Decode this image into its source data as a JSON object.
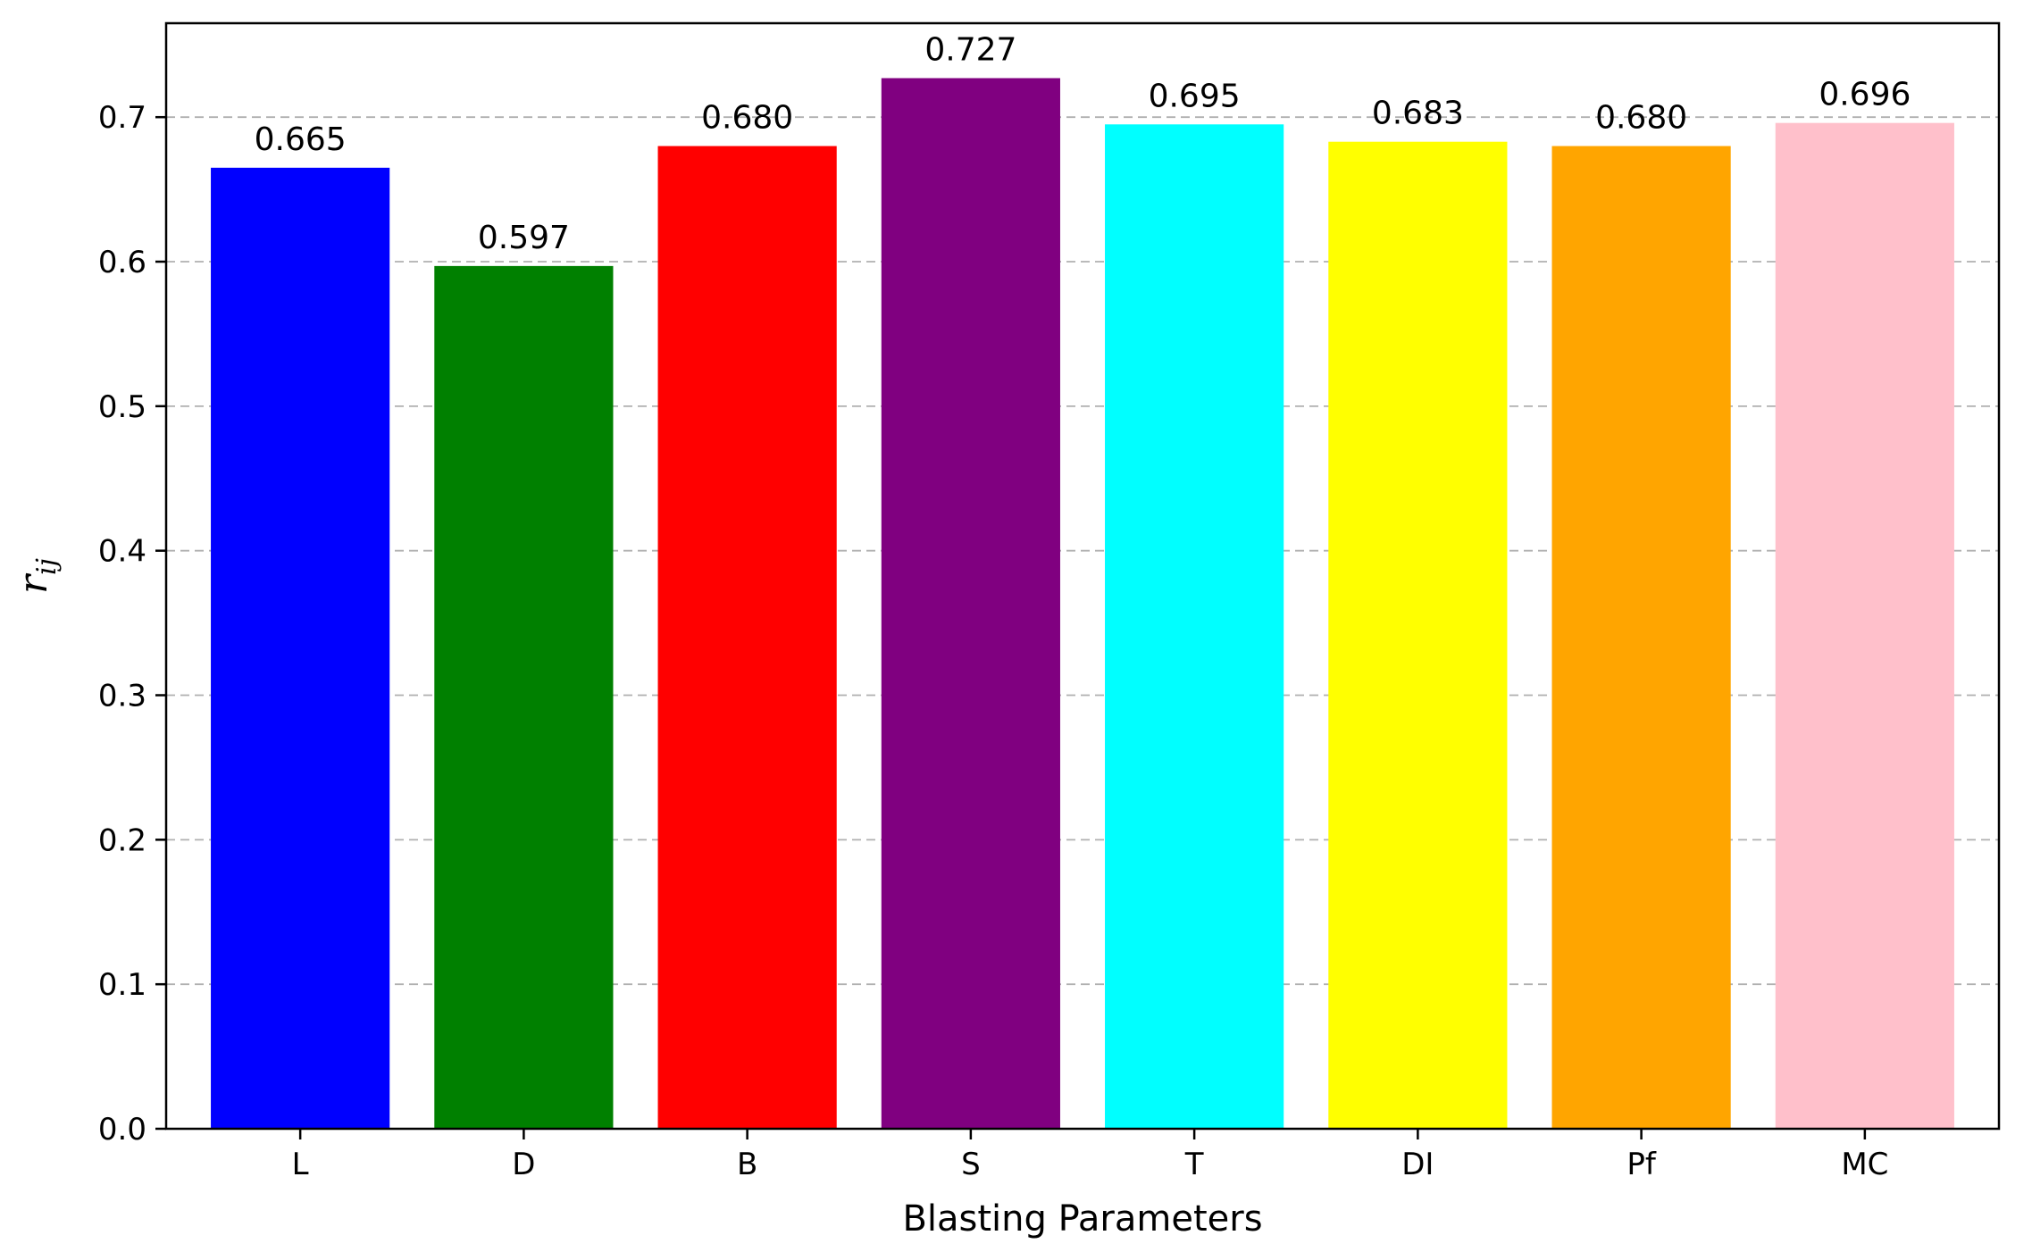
{
  "chart_data": {
    "type": "bar",
    "title": "",
    "xlabel": "Blasting Parameters",
    "ylabel": {
      "base": "r",
      "subscript": "ij"
    },
    "categories": [
      "L",
      "D",
      "B",
      "S",
      "T",
      "DI",
      "Pf",
      "MC"
    ],
    "values": [
      0.665,
      0.597,
      0.68,
      0.727,
      0.695,
      0.683,
      0.68,
      0.696
    ],
    "value_labels": [
      "0.665",
      "0.597",
      "0.680",
      "0.727",
      "0.695",
      "0.683",
      "0.680",
      "0.696"
    ],
    "colors": [
      "#0000ff",
      "#008000",
      "#ff0000",
      "#800080",
      "#00ffff",
      "#ffff00",
      "#ffa500",
      "#ffc0cb"
    ],
    "ylim": [
      0,
      0.765
    ],
    "yticks": [
      0.0,
      0.1,
      0.2,
      0.3,
      0.4,
      0.5,
      0.6,
      0.7
    ],
    "ytick_labels": [
      "0.0",
      "0.1",
      "0.2",
      "0.3",
      "0.4",
      "0.5",
      "0.6",
      "0.7"
    ],
    "grid": {
      "axis": "y",
      "style": "dashed",
      "color": "#b0b0b0"
    },
    "legend": "none"
  }
}
